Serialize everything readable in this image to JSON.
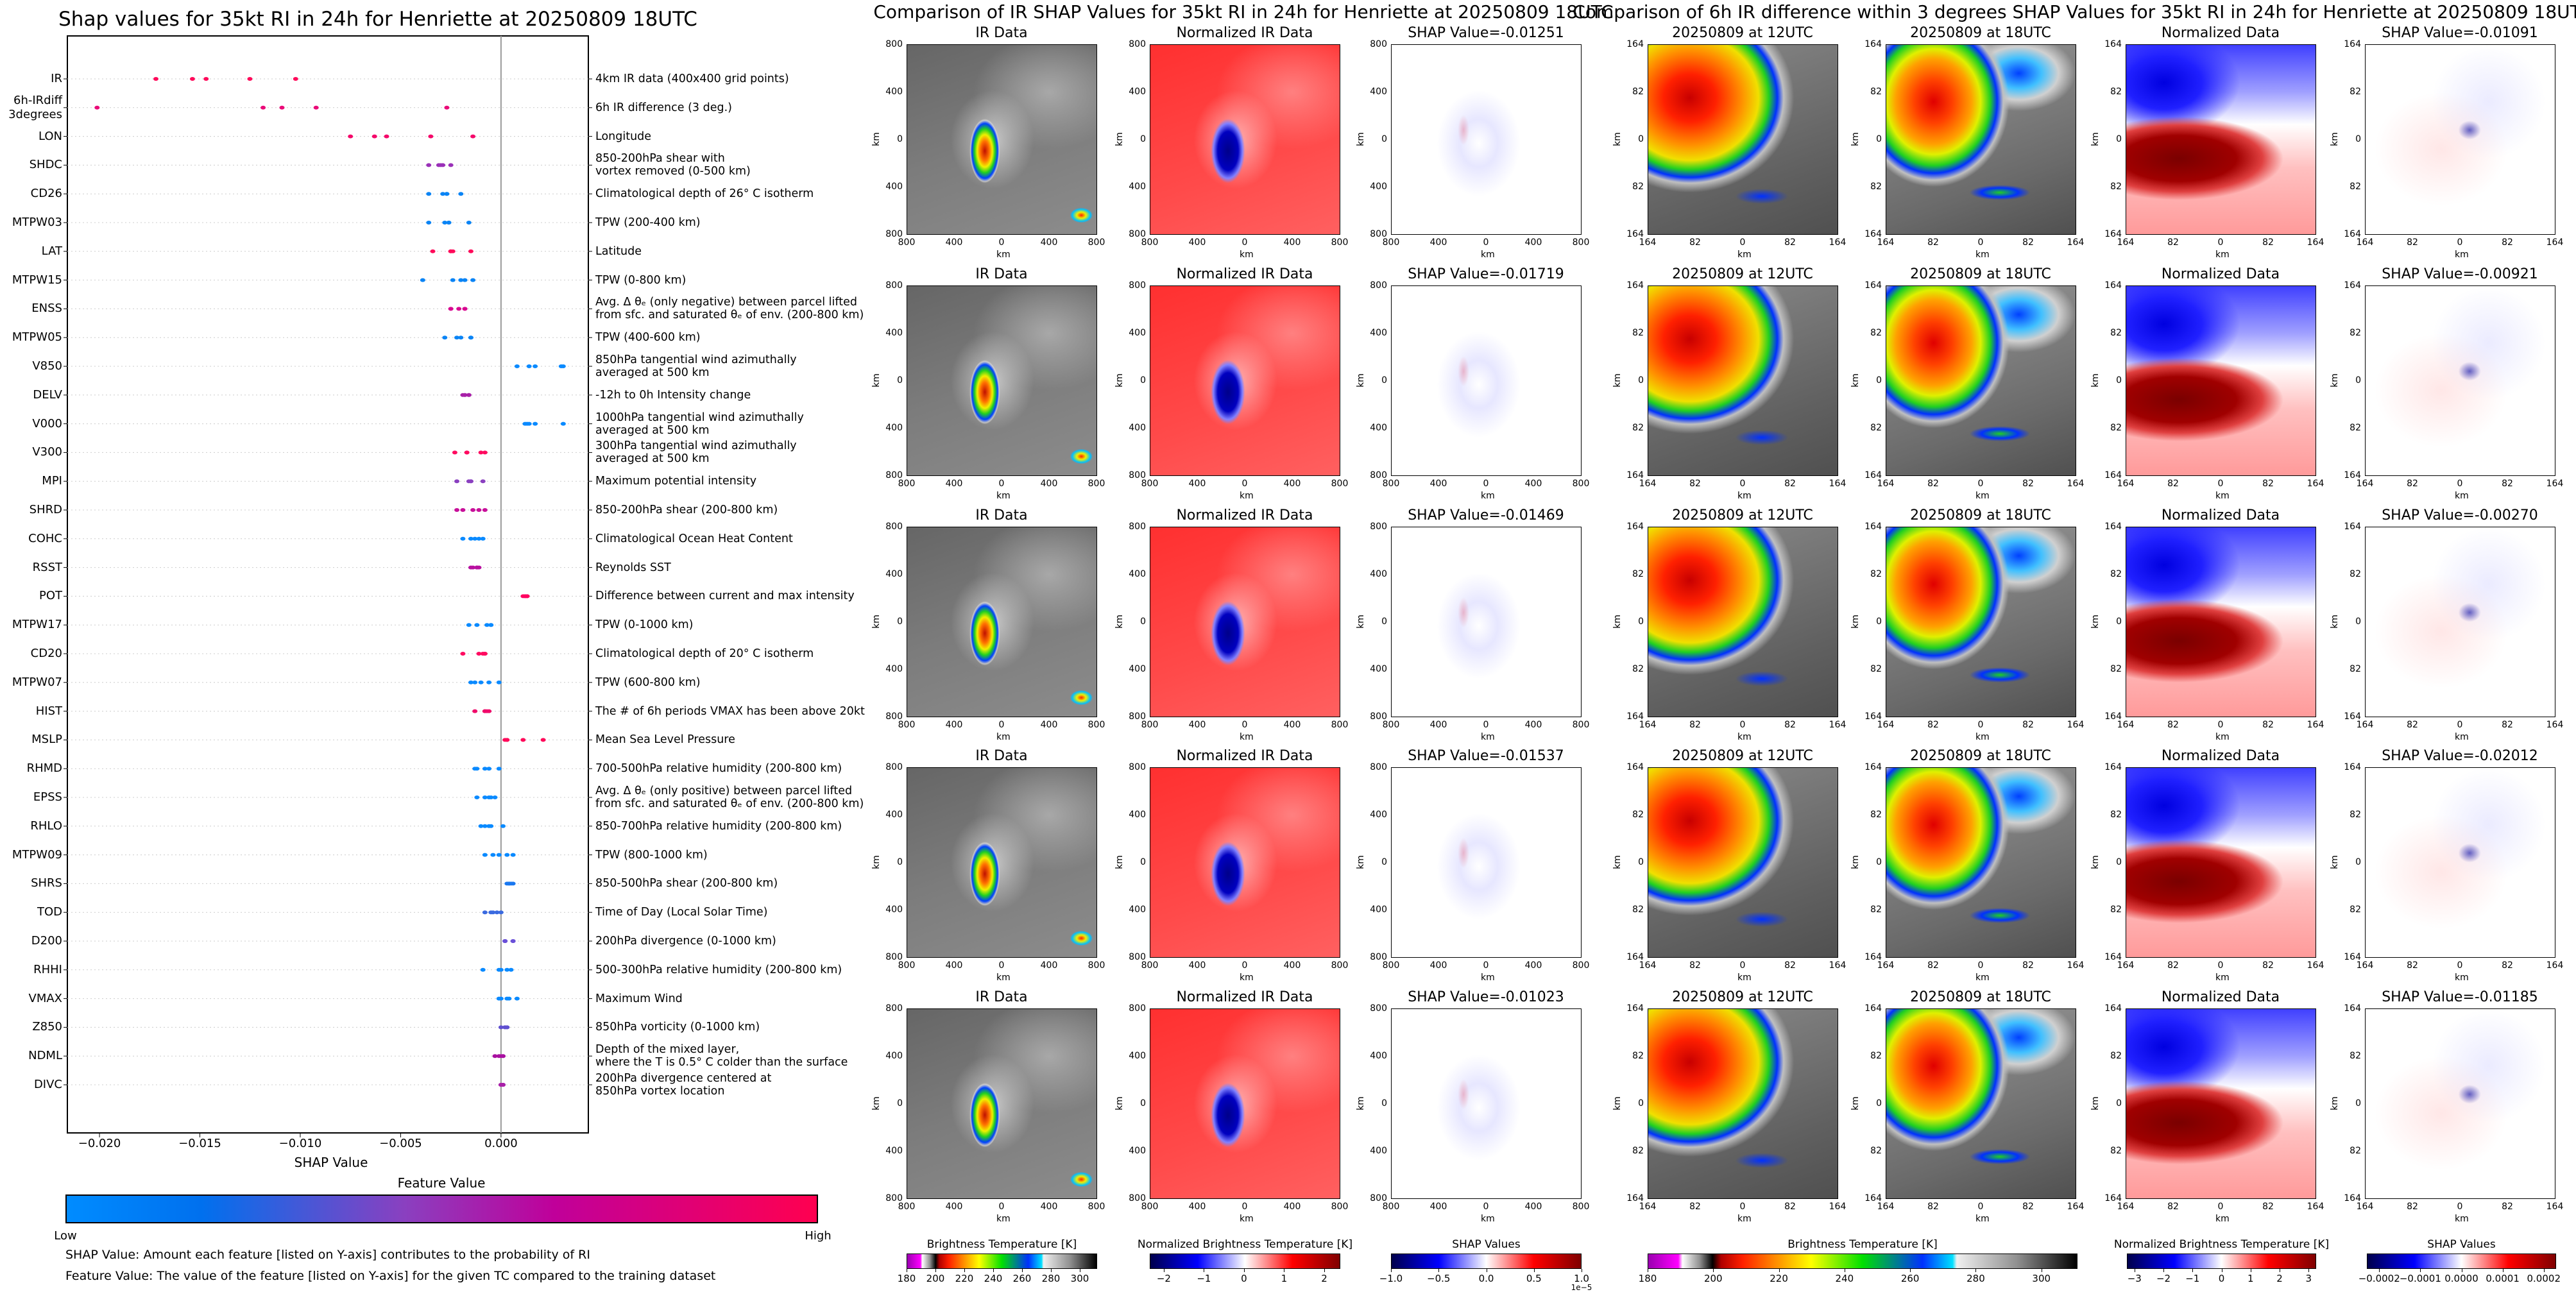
{
  "left": {
    "title": "Shap values for 35kt RI in 24h for Henriette at 20250809 18UTC",
    "colorbar_title": "Feature Value",
    "colorbar_low": "Low",
    "colorbar_high": "High",
    "colorbar_colors": [
      "#008cff",
      "#0070ee",
      "#8a40c0",
      "#c0009a",
      "#ff0050"
    ],
    "note_shap": "SHAP Value: Amount each feature [listed on Y-axis] contributes to the probability of RI",
    "note_feature": "Feature Value: The value of the feature [listed on Y-axis] for the given TC compared to the training dataset"
  },
  "chart_data": {
    "type": "scatter",
    "title": "Shap values for 35kt RI in 24h for Henriette at 20250809 18UTC",
    "xlabel": "SHAP Value",
    "ylabel": "",
    "xlim": [
      -0.0216,
      0.00435
    ],
    "xticks": [
      "−0.020",
      "−0.015",
      "−0.010",
      "−0.005",
      "0.000"
    ],
    "xtick_values": [
      -0.02,
      -0.015,
      -0.01,
      -0.005,
      0.0
    ],
    "grid": "horizontal dotted",
    "zero_line": true,
    "features": [
      {
        "code": "IR",
        "desc": "4km IR data (400x400 grid points)",
        "color": "#ff0a5a",
        "values": [
          -0.01719,
          -0.01537,
          -0.01469,
          -0.01251,
          -0.01023
        ]
      },
      {
        "code": "6h-IRdiff\n3degrees",
        "desc": "6h IR difference (3 deg.)",
        "color": "#ea0a78",
        "values": [
          -0.02012,
          -0.01185,
          -0.01091,
          -0.00921,
          -0.0027
        ]
      },
      {
        "code": "LON",
        "desc": "Longitude",
        "color": "#f5086a",
        "values": [
          -0.0075,
          -0.0063,
          -0.0057,
          -0.0035,
          -0.0014
        ]
      },
      {
        "code": "SHDC",
        "desc": "850-200hPa shear with\nvortex removed (0-500 km)",
        "color": "#9a30b8",
        "values": [
          -0.0036,
          -0.0031,
          -0.003,
          -0.0029,
          -0.0025
        ]
      },
      {
        "code": "CD26",
        "desc": "Climatological depth of 26° C isotherm",
        "color": "#0a84f5",
        "values": [
          -0.0036,
          -0.0029,
          -0.0027,
          -0.0027,
          -0.002
        ]
      },
      {
        "code": "MTPW03",
        "desc": "TPW (200-400 km)",
        "color": "#0a84f5",
        "values": [
          -0.0036,
          -0.0028,
          -0.0026,
          -0.0026,
          -0.0016
        ]
      },
      {
        "code": "LAT",
        "desc": "Latitude",
        "color": "#ff0a5a",
        "values": [
          -0.0034,
          -0.0025,
          -0.0025,
          -0.0024,
          -0.0015
        ]
      },
      {
        "code": "MTPW15",
        "desc": "TPW (0-800 km)",
        "color": "#0a84f5",
        "values": [
          -0.0039,
          -0.0024,
          -0.002,
          -0.0018,
          -0.0014
        ]
      },
      {
        "code": "ENSS",
        "desc": "Avg. Δ θₑ (only negative) between parcel lifted\nfrom sfc. and saturated θₑ of env. (200-800 km)",
        "color": "#d80890",
        "values": [
          -0.0025,
          -0.0025,
          -0.0021,
          -0.0018,
          -0.0018
        ]
      },
      {
        "code": "MTPW05",
        "desc": "TPW (400-600 km)",
        "color": "#0a84f5",
        "values": [
          -0.0028,
          -0.0022,
          -0.002,
          -0.0015,
          -0.0015
        ]
      },
      {
        "code": "V850",
        "desc": "850hPa tangential wind azimuthally\naveraged at 500 km",
        "color": "#0a8aff",
        "values": [
          0.0008,
          0.0014,
          0.0017,
          0.003,
          0.0031
        ]
      },
      {
        "code": "DELV",
        "desc": "-12h to 0h Intensity change",
        "color": "#a820a8",
        "values": [
          -0.0019,
          -0.0018,
          -0.0018,
          -0.0016,
          -0.0016
        ]
      },
      {
        "code": "V000",
        "desc": "1000hPa tangential wind azimuthally\naveraged at 500 km",
        "color": "#0a8aff",
        "values": [
          0.0012,
          0.0013,
          0.0014,
          0.0017,
          0.0031
        ]
      },
      {
        "code": "V300",
        "desc": "300hPa tangential wind azimuthally\naveraged at 500 km",
        "color": "#ff0a60",
        "values": [
          -0.0023,
          -0.0017,
          -0.0017,
          -0.001,
          -0.0008
        ]
      },
      {
        "code": "MPI",
        "desc": "Maximum potential intensity",
        "color": "#8a40c0",
        "values": [
          -0.0022,
          -0.0016,
          -0.0015,
          -0.0015,
          -0.0009
        ]
      },
      {
        "code": "SHRD",
        "desc": "850-200hPa shear (200-800 km)",
        "color": "#c8109a",
        "values": [
          -0.0022,
          -0.0019,
          -0.0014,
          -0.0011,
          -0.0008
        ]
      },
      {
        "code": "COHC",
        "desc": "Climatological Ocean Heat Content",
        "color": "#0a8aff",
        "values": [
          -0.0019,
          -0.0015,
          -0.0013,
          -0.0011,
          -0.0009
        ]
      },
      {
        "code": "RSST",
        "desc": "Reynolds SST",
        "color": "#b810a0",
        "values": [
          -0.0015,
          -0.0014,
          -0.0012,
          -0.0012,
          -0.0011
        ]
      },
      {
        "code": "POT",
        "desc": "Difference between current and max intensity",
        "color": "#ff0060",
        "values": [
          0.0011,
          0.0012,
          0.0012,
          0.0013,
          0.0013
        ]
      },
      {
        "code": "MTPW17",
        "desc": "TPW (0-1000 km)",
        "color": "#0a8aff",
        "values": [
          -0.0016,
          -0.0012,
          -0.0007,
          -0.0005,
          -0.0005
        ]
      },
      {
        "code": "CD20",
        "desc": "Climatological depth of 20° C isotherm",
        "color": "#ff0a60",
        "values": [
          -0.0019,
          -0.0011,
          -0.0009,
          -0.0008,
          -0.0008
        ]
      },
      {
        "code": "MTPW07",
        "desc": "TPW (600-800 km)",
        "color": "#0a8aff",
        "values": [
          -0.0015,
          -0.0013,
          -0.001,
          -0.0006,
          -0.0001
        ]
      },
      {
        "code": "HIST",
        "desc": "The # of 6h periods VMAX has been above 20kt",
        "color": "#f00a6a",
        "values": [
          -0.0013,
          -0.0008,
          -0.0008,
          -0.0007,
          -0.0006
        ]
      },
      {
        "code": "MSLP",
        "desc": "Mean Sea Level Pressure",
        "color": "#ff0a5a",
        "values": [
          0.0002,
          0.0003,
          0.0003,
          0.0011,
          0.0021
        ]
      },
      {
        "code": "RHMD",
        "desc": "700-500hPa relative humidity (200-800 km)",
        "color": "#0a8aff",
        "values": [
          -0.0013,
          -0.0012,
          -0.0008,
          -0.0006,
          -0.0001
        ]
      },
      {
        "code": "EPSS",
        "desc": "Avg. Δ θₑ (only positive) between parcel lifted\nfrom sfc. and saturated θₑ of env. (200-800 km)",
        "color": "#0a8aff",
        "values": [
          -0.0012,
          -0.0008,
          -0.0006,
          -0.0005,
          -0.0003
        ]
      },
      {
        "code": "RHLO",
        "desc": "850-700hPa relative humidity (200-800 km)",
        "color": "#0a8aff",
        "values": [
          -0.001,
          -0.0008,
          -0.0006,
          -0.0005,
          0.0001
        ]
      },
      {
        "code": "MTPW09",
        "desc": "TPW (800-1000 km)",
        "color": "#0a8aff",
        "values": [
          -0.0008,
          -0.0004,
          -0.0001,
          0.0003,
          0.0006
        ]
      },
      {
        "code": "SHRS",
        "desc": "850-500hPa shear (200-800 km)",
        "color": "#1a78f0",
        "values": [
          0.0003,
          0.0004,
          0.0004,
          0.0005,
          0.0006
        ]
      },
      {
        "code": "TOD",
        "desc": "Time of Day (Local Solar Time)",
        "color": "#3a6ae0",
        "values": [
          -0.0008,
          -0.0005,
          -0.0004,
          -0.0002,
          0.0
        ]
      },
      {
        "code": "D200",
        "desc": "200hPa divergence (0-1000 km)",
        "color": "#6a50d8",
        "values": [
          0.0002,
          0.0002,
          0.0002,
          0.0006,
          0.0006
        ]
      },
      {
        "code": "RHHI",
        "desc": "500-300hPa relative humidity (200-800 km)",
        "color": "#0a8aff",
        "values": [
          -0.0009,
          -0.0001,
          0.0,
          0.0003,
          0.0005
        ]
      },
      {
        "code": "VMAX",
        "desc": "Maximum Wind",
        "color": "#0a8aff",
        "values": [
          -0.0001,
          0.0,
          0.0003,
          0.0004,
          0.0008
        ]
      },
      {
        "code": "Z850",
        "desc": "850hPa vorticity (0-1000 km)",
        "color": "#6050d0",
        "values": [
          0.0,
          0.0002,
          0.0002,
          0.0003,
          0.0003
        ]
      },
      {
        "code": "NDML",
        "desc": "Depth of the mixed layer,\nwhere the T is 0.5° C colder than the surface",
        "color": "#a810a0",
        "values": [
          -0.0003,
          -0.0001,
          0.0,
          0.0001,
          0.0001
        ]
      },
      {
        "code": "DIVC",
        "desc": "200hPa divergence centered at\n850hPa vortex location",
        "color": "#a820a8",
        "values": [
          0.0,
          0.0,
          0.0001,
          0.0001,
          0.0001
        ]
      }
    ]
  },
  "mid": {
    "title": "Comparison of IR SHAP Values for 35kt RI in 24h for Henriette at 20250809 18UTC",
    "axis_label": "km",
    "yticks": [
      "800",
      "400",
      "0",
      "400",
      "800"
    ],
    "xticks": [
      "800",
      "400",
      "0",
      "400",
      "800"
    ],
    "rows": [
      [
        "IR Data",
        "Normalized IR Data",
        "SHAP Value=-0.01251"
      ],
      [
        "IR Data",
        "Normalized IR Data",
        "SHAP Value=-0.01719"
      ],
      [
        "IR Data",
        "Normalized IR Data",
        "SHAP Value=-0.01469"
      ],
      [
        "IR Data",
        "Normalized IR Data",
        "SHAP Value=-0.01537"
      ],
      [
        "IR Data",
        "Normalized IR Data",
        "SHAP Value=-0.01023"
      ]
    ],
    "colorbars": [
      {
        "label": "Brightness Temperature [K]",
        "cmap": "bt",
        "range": [
          180,
          312
        ],
        "ticks": [
          "180",
          "200",
          "220",
          "240",
          "260",
          "280",
          "300"
        ],
        "tick_values": [
          180,
          200,
          220,
          240,
          260,
          280,
          300
        ]
      },
      {
        "label": "Normalized Brightness Temperature [K]",
        "cmap": "seismic",
        "range": [
          -2.35,
          2.4
        ],
        "ticks": [
          "−2",
          "−1",
          "0",
          "1",
          "2"
        ],
        "tick_values": [
          -2,
          -1,
          0,
          1,
          2
        ]
      },
      {
        "label": "SHAP Values",
        "cmap": "seismic",
        "range": [
          -1,
          1
        ],
        "ticks": [
          "−1.0",
          "−0.5",
          "0.0",
          "0.5",
          "1.0"
        ],
        "tick_values": [
          -1,
          -0.5,
          0,
          0.5,
          1
        ],
        "offset": "1e−5"
      }
    ]
  },
  "right": {
    "title": "Comparison of 6h IR difference within 3 degrees SHAP Values for 35kt RI in 24h for Henriette at 20250809 18UTC",
    "axis_label": "km",
    "yticks": [
      "164",
      "82",
      "0",
      "82",
      "164"
    ],
    "xticks": [
      "164",
      "82",
      "0",
      "82",
      "164"
    ],
    "rows": [
      [
        "20250809 at 12UTC",
        "20250809 at 18UTC",
        "Normalized Data",
        "SHAP Value=-0.01091"
      ],
      [
        "20250809 at 12UTC",
        "20250809 at 18UTC",
        "Normalized Data",
        "SHAP Value=-0.00921"
      ],
      [
        "20250809 at 12UTC",
        "20250809 at 18UTC",
        "Normalized Data",
        "SHAP Value=-0.00270"
      ],
      [
        "20250809 at 12UTC",
        "20250809 at 18UTC",
        "Normalized Data",
        "SHAP Value=-0.02012"
      ],
      [
        "20250809 at 12UTC",
        "20250809 at 18UTC",
        "Normalized Data",
        "SHAP Value=-0.01185"
      ]
    ],
    "colorbars": [
      {
        "label": "Brightness Temperature [K]",
        "cmap": "bt",
        "range": [
          180,
          311
        ],
        "ticks": [
          "180",
          "200",
          "220",
          "240",
          "260",
          "280",
          "300"
        ],
        "tick_values": [
          180,
          200,
          220,
          240,
          260,
          280,
          300
        ]
      },
      {
        "label": "Normalized Brightness Temperature [K]",
        "cmap": "seismic",
        "range": [
          -3.26,
          3.26
        ],
        "ticks": [
          "−3",
          "−2",
          "−1",
          "0",
          "1",
          "2",
          "3"
        ],
        "tick_values": [
          -3,
          -2,
          -1,
          0,
          1,
          2,
          3
        ]
      },
      {
        "label": "SHAP Values",
        "cmap": "seismic",
        "range": [
          -0.00023,
          0.00023
        ],
        "ticks": [
          "−0.0002",
          "−0.0001",
          "0.0000",
          "0.0001",
          "0.0002"
        ],
        "tick_values": [
          -0.0002,
          -0.0001,
          0,
          0.0001,
          0.0002
        ]
      }
    ]
  }
}
